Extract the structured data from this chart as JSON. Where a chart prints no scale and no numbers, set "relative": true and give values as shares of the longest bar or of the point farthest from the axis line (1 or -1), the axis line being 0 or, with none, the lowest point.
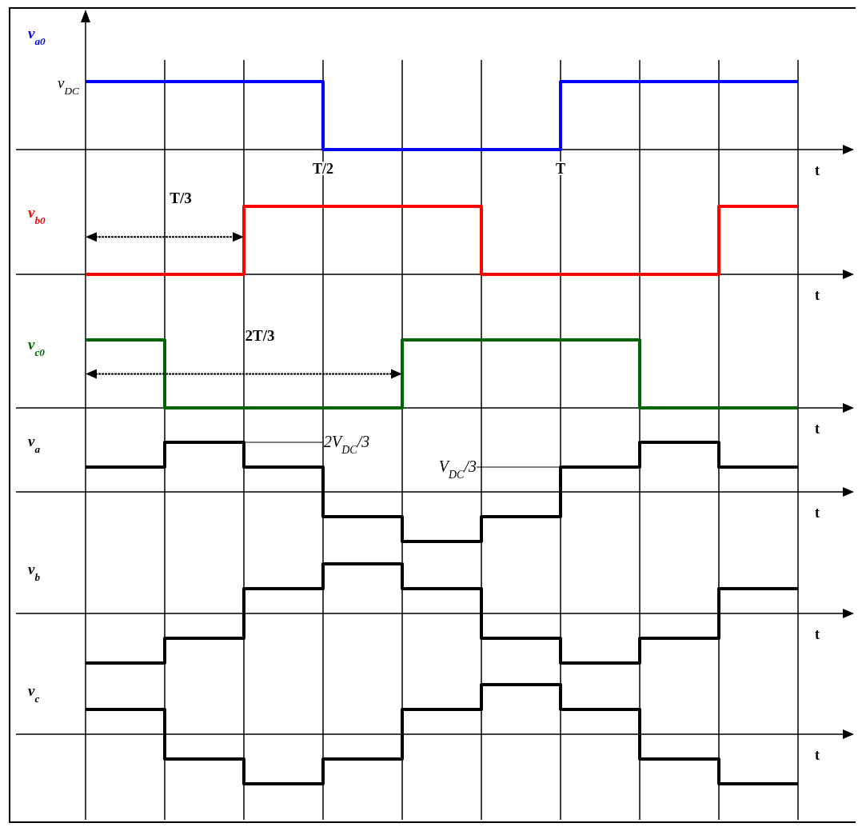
{
  "chart_data": [
    {
      "type": "step",
      "relative": true,
      "ylabel": "v$_{a0}$",
      "xlabel": "t",
      "categories": [
        null,
        null,
        null,
        "T/2",
        null,
        null,
        "T",
        null,
        null,
        null
      ],
      "grid": "x",
      "tick_labels": "x",
      "series": [
        {
          "color": "#0000ff",
          "values": [
            1,
            1,
            1,
            0,
            0,
            0,
            1,
            1,
            1,
            1
          ]
        }
      ],
      "annotations": [
        "v$_{DC}$"
      ]
    },
    {
      "type": "step",
      "relative": true,
      "ylabel": "v$_{b0}$",
      "xlabel": "t",
      "categories": [
        null,
        null,
        null,
        null,
        null,
        null,
        null,
        null,
        null,
        null
      ],
      "grid": "x",
      "tick_labels": false,
      "series": [
        {
          "color": "#ff0000",
          "values": [
            0,
            0,
            1,
            1,
            1,
            0,
            0,
            0,
            1,
            1
          ]
        }
      ],
      "annotations": [
        "T/3"
      ]
    },
    {
      "type": "step",
      "relative": true,
      "ylabel": "v$_{c0}$",
      "xlabel": "t",
      "categories": [
        null,
        null,
        null,
        null,
        null,
        null,
        null,
        null,
        null,
        null
      ],
      "grid": "x",
      "tick_labels": false,
      "series": [
        {
          "color": "#006400",
          "values": [
            1,
            0,
            0,
            0,
            1,
            1,
            1,
            0,
            0,
            0
          ]
        }
      ],
      "annotations": [
        "2T/3"
      ]
    },
    {
      "type": "step",
      "relative": true,
      "ylabel": "v$_{a}$",
      "xlabel": "t",
      "categories": [
        null,
        null,
        null,
        null,
        null,
        null,
        null,
        null,
        null,
        null
      ],
      "grid": "x",
      "tick_labels": false,
      "series": [
        {
          "color": "#000000",
          "values": [
            0.5,
            1,
            0.5,
            -0.5,
            -1,
            -0.5,
            0.5,
            1,
            0.5,
            0.5
          ]
        }
      ],
      "annotations": [
        "2V$_{DC}$/3",
        "V$_{DC}$/3"
      ]
    },
    {
      "type": "step",
      "relative": true,
      "ylabel": "v$_{b}$",
      "xlabel": "t",
      "categories": [
        null,
        null,
        null,
        null,
        null,
        null,
        null,
        null,
        null,
        null
      ],
      "grid": "x",
      "tick_labels": false,
      "series": [
        {
          "color": "#000000",
          "values": [
            -1,
            -0.5,
            0.5,
            1,
            0.5,
            -0.5,
            -1,
            -0.5,
            0.5,
            0.5
          ]
        }
      ]
    },
    {
      "type": "step",
      "relative": true,
      "ylabel": "v$_{c}$",
      "xlabel": "t",
      "categories": [
        null,
        null,
        null,
        null,
        null,
        null,
        null,
        null,
        null,
        null
      ],
      "grid": "x",
      "tick_labels": false,
      "series": [
        {
          "color": "#000000",
          "values": [
            0.5,
            -0.5,
            -1,
            -0.5,
            0.5,
            1,
            0.5,
            -0.5,
            -1,
            -1
          ]
        }
      ]
    }
  ]
}
